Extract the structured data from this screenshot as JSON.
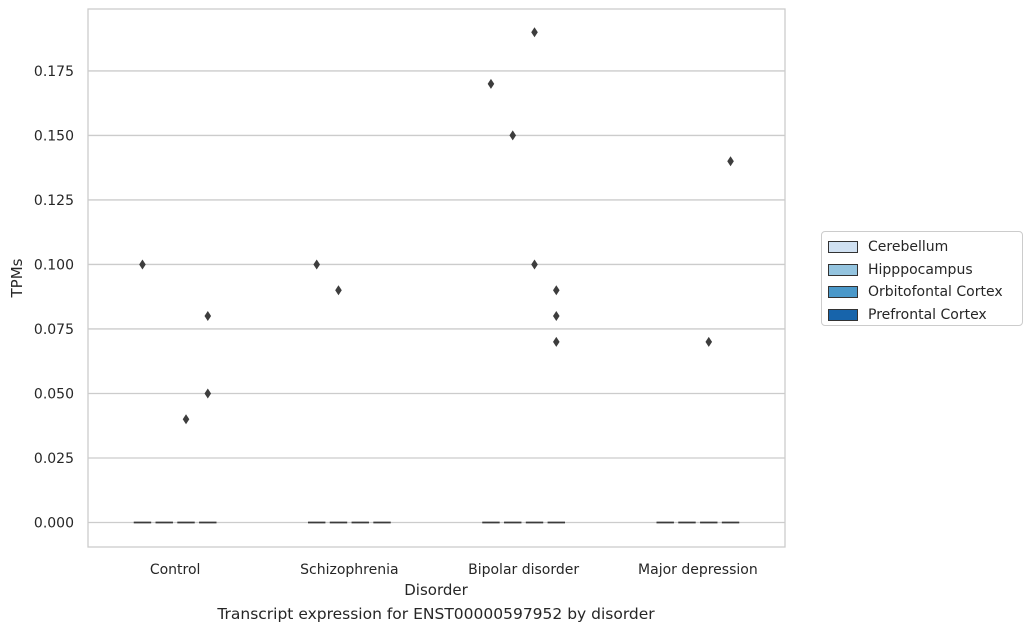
{
  "chart_data": {
    "type": "box",
    "xlabel": "Disorder",
    "ylabel": "TPMs",
    "caption": "Transcript expression for ENST00000597952 by disorder",
    "categories": [
      "Control",
      "Schizophrenia",
      "Bipolar disorder",
      "Major depression"
    ],
    "hue_levels": [
      "Cerebellum",
      "Hipppocampus",
      "Orbitofontal Cortex",
      "Prefrontal Cortex"
    ],
    "colors": [
      "#d0e1f2",
      "#94c4df",
      "#4a98c9",
      "#1764ab"
    ],
    "ylim": [
      -0.0095,
      0.199
    ],
    "yticks": [
      0.0,
      0.025,
      0.05,
      0.075,
      0.1,
      0.125,
      0.15,
      0.175
    ],
    "ytick_labels": [
      "0.000",
      "0.025",
      "0.050",
      "0.075",
      "0.100",
      "0.125",
      "0.150",
      "0.175"
    ],
    "grid": true,
    "legend_position": "right-outside",
    "medians": [
      {
        "category": "Control",
        "values": [
          0,
          0,
          0,
          0
        ]
      },
      {
        "category": "Schizophrenia",
        "values": [
          0,
          0,
          0,
          0
        ]
      },
      {
        "category": "Bipolar disorder",
        "values": [
          0,
          0,
          0,
          0
        ]
      },
      {
        "category": "Major depression",
        "values": [
          0,
          0,
          0,
          0
        ]
      }
    ],
    "outliers": [
      {
        "category": "Control",
        "hue": "Cerebellum",
        "values": [
          0.1
        ]
      },
      {
        "category": "Control",
        "hue": "Orbitofontal Cortex",
        "values": [
          0.04
        ]
      },
      {
        "category": "Control",
        "hue": "Prefrontal Cortex",
        "values": [
          0.08,
          0.05
        ]
      },
      {
        "category": "Schizophrenia",
        "hue": "Cerebellum",
        "values": [
          0.1
        ]
      },
      {
        "category": "Schizophrenia",
        "hue": "Hipppocampus",
        "values": [
          0.09
        ]
      },
      {
        "category": "Bipolar disorder",
        "hue": "Orbitofontal Cortex",
        "values": [
          0.19,
          0.1
        ]
      },
      {
        "category": "Bipolar disorder",
        "hue": "Hipppocampus",
        "values": [
          0.15
        ]
      },
      {
        "category": "Bipolar disorder",
        "hue": "Cerebellum",
        "values": [
          0.17
        ]
      },
      {
        "category": "Bipolar disorder",
        "hue": "Prefrontal Cortex",
        "values": [
          0.09,
          0.08,
          0.07
        ]
      },
      {
        "category": "Major depression",
        "hue": "Orbitofontal Cortex",
        "values": [
          0.07
        ]
      },
      {
        "category": "Major depression",
        "hue": "Prefrontal Cortex",
        "values": [
          0.14
        ]
      }
    ]
  }
}
